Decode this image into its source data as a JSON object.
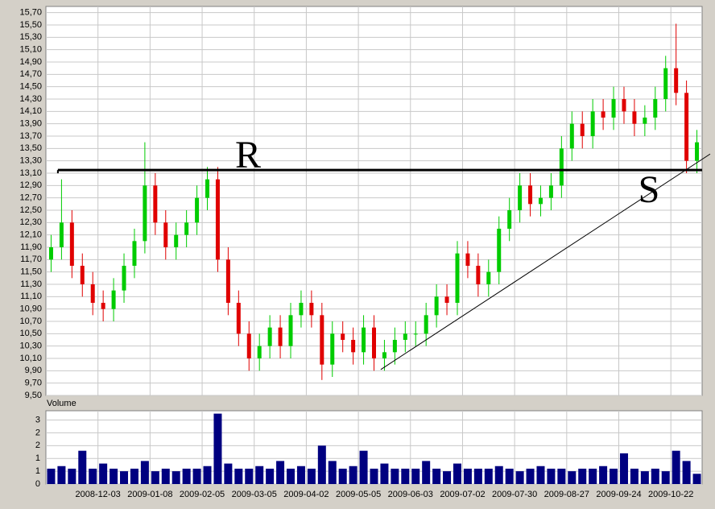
{
  "chart_data": {
    "type": "candlestick",
    "up_color": "#00cc00",
    "down_color": "#e00000",
    "grid": true,
    "open": [
      11.7,
      11.9,
      12.3,
      11.6,
      11.3,
      11.0,
      10.9,
      11.2,
      11.6,
      12.0,
      12.9,
      12.3,
      11.9,
      12.1,
      12.3,
      12.7,
      13.0,
      11.7,
      11.0,
      10.5,
      10.1,
      10.3,
      10.6,
      10.3,
      10.8,
      11.0,
      10.8,
      10.0,
      10.5,
      10.4,
      10.2,
      10.6,
      10.1,
      10.2,
      10.4,
      10.5,
      10.5,
      10.8,
      11.1,
      11.0,
      11.8,
      11.6,
      11.3,
      11.5,
      12.2,
      12.5,
      12.9,
      12.6,
      12.7,
      12.9,
      13.5,
      13.9,
      13.7,
      14.1,
      14.0,
      14.3,
      14.1,
      13.9,
      14.0,
      14.3,
      14.8,
      14.4,
      13.3
    ],
    "high": [
      12.1,
      13.0,
      12.5,
      11.8,
      11.5,
      11.2,
      11.4,
      11.8,
      12.2,
      13.6,
      13.1,
      12.5,
      12.3,
      12.5,
      12.9,
      13.2,
      13.2,
      11.9,
      11.2,
      10.7,
      10.5,
      10.8,
      10.8,
      11.0,
      11.2,
      11.2,
      11.0,
      10.7,
      10.7,
      10.6,
      10.8,
      10.8,
      10.4,
      10.6,
      10.7,
      10.7,
      11.0,
      11.3,
      11.3,
      12.0,
      12.0,
      11.8,
      11.7,
      12.4,
      12.7,
      13.1,
      13.1,
      12.9,
      13.1,
      13.7,
      14.1,
      14.1,
      14.3,
      14.3,
      14.5,
      14.5,
      14.3,
      14.2,
      14.5,
      15.0,
      15.52,
      14.6,
      13.8
    ],
    "low": [
      11.5,
      11.7,
      11.4,
      11.1,
      10.8,
      10.7,
      10.7,
      11.0,
      11.4,
      11.8,
      12.1,
      11.7,
      11.7,
      11.9,
      12.1,
      12.5,
      11.5,
      10.8,
      10.3,
      9.9,
      9.9,
      10.1,
      10.1,
      10.1,
      10.6,
      10.6,
      9.75,
      9.8,
      10.2,
      10.0,
      10.0,
      9.9,
      9.9,
      10.0,
      10.2,
      10.3,
      10.3,
      10.6,
      10.8,
      10.8,
      11.4,
      11.1,
      11.1,
      11.3,
      12.0,
      12.3,
      12.4,
      12.4,
      12.5,
      12.7,
      13.3,
      13.5,
      13.5,
      13.8,
      13.8,
      13.9,
      13.7,
      13.7,
      13.8,
      14.1,
      14.2,
      13.1,
      13.1
    ],
    "close": [
      11.9,
      12.3,
      11.6,
      11.3,
      11.0,
      10.9,
      11.2,
      11.6,
      12.0,
      12.9,
      12.3,
      11.9,
      12.1,
      12.3,
      12.7,
      13.0,
      11.7,
      11.0,
      10.5,
      10.1,
      10.3,
      10.6,
      10.3,
      10.8,
      11.0,
      10.8,
      10.0,
      10.5,
      10.4,
      10.2,
      10.6,
      10.1,
      10.2,
      10.4,
      10.5,
      10.5,
      10.8,
      11.1,
      11.0,
      11.8,
      11.6,
      11.3,
      11.5,
      12.2,
      12.5,
      12.9,
      12.6,
      12.7,
      12.9,
      13.5,
      13.9,
      13.7,
      14.1,
      14.0,
      14.3,
      14.1,
      13.9,
      14.0,
      14.3,
      14.8,
      14.4,
      13.3,
      13.6
    ],
    "xlim": [
      0,
      63
    ],
    "xticks": [
      {
        "value": 5,
        "label": "2008-12-03"
      },
      {
        "value": 10,
        "label": "2009-01-08"
      },
      {
        "value": 15,
        "label": "2009-02-05"
      },
      {
        "value": 20,
        "label": "2009-03-05"
      },
      {
        "value": 25,
        "label": "2009-04-02"
      },
      {
        "value": 30,
        "label": "2009-05-05"
      },
      {
        "value": 35,
        "label": "2009-06-03"
      },
      {
        "value": 40,
        "label": "2009-07-02"
      },
      {
        "value": 45,
        "label": "2009-07-30"
      },
      {
        "value": 50,
        "label": "2009-08-27"
      },
      {
        "value": 55,
        "label": "2009-09-24"
      },
      {
        "value": 60,
        "label": "2009-10-22"
      }
    ],
    "ylim": [
      9.5,
      15.8
    ],
    "yticks": [
      {
        "value": 9.5,
        "label": "9,50"
      },
      {
        "value": 9.7,
        "label": "9,70"
      },
      {
        "value": 9.9,
        "label": "9,90"
      },
      {
        "value": 10.1,
        "label": "10,10"
      },
      {
        "value": 10.3,
        "label": "10,30"
      },
      {
        "value": 10.5,
        "label": "10,50"
      },
      {
        "value": 10.7,
        "label": "10,70"
      },
      {
        "value": 10.9,
        "label": "10,90"
      },
      {
        "value": 11.1,
        "label": "11,10"
      },
      {
        "value": 11.3,
        "label": "11,30"
      },
      {
        "value": 11.5,
        "label": "11,50"
      },
      {
        "value": 11.7,
        "label": "11,70"
      },
      {
        "value": 11.9,
        "label": "11,90"
      },
      {
        "value": 12.1,
        "label": "12,10"
      },
      {
        "value": 12.3,
        "label": "12,30"
      },
      {
        "value": 12.5,
        "label": "12,50"
      },
      {
        "value": 12.7,
        "label": "12,70"
      },
      {
        "value": 12.9,
        "label": "12,90"
      },
      {
        "value": 13.1,
        "label": "13,10"
      },
      {
        "value": 13.3,
        "label": "13,30"
      },
      {
        "value": 13.5,
        "label": "13,50"
      },
      {
        "value": 13.7,
        "label": "13,70"
      },
      {
        "value": 13.9,
        "label": "13,90"
      },
      {
        "value": 14.1,
        "label": "14,10"
      },
      {
        "value": 14.3,
        "label": "14,30"
      },
      {
        "value": 14.5,
        "label": "14,50"
      },
      {
        "value": 14.7,
        "label": "14,70"
      },
      {
        "value": 14.9,
        "label": "14,90"
      },
      {
        "value": 15.1,
        "label": "15,10"
      },
      {
        "value": 15.3,
        "label": "15,30"
      },
      {
        "value": 15.5,
        "label": "15,50"
      },
      {
        "value": 15.7,
        "label": "15,70"
      }
    ],
    "resistance": {
      "label": "R",
      "value": 13.15,
      "from": 1.15
    },
    "support": {
      "label": "S",
      "x": [
        32.15,
        63.77
      ],
      "y": [
        9.92,
        13.41
      ]
    },
    "volume": {
      "title": "Volume",
      "color": "#000080",
      "values": [
        0.6,
        0.7,
        0.6,
        1.3,
        0.6,
        0.8,
        0.6,
        0.5,
        0.6,
        0.9,
        0.5,
        0.6,
        0.5,
        0.6,
        0.6,
        0.7,
        2.75,
        0.8,
        0.6,
        0.6,
        0.7,
        0.6,
        0.9,
        0.6,
        0.7,
        0.6,
        1.5,
        0.9,
        0.6,
        0.7,
        1.3,
        0.6,
        0.8,
        0.6,
        0.6,
        0.6,
        0.9,
        0.6,
        0.5,
        0.8,
        0.6,
        0.6,
        0.6,
        0.7,
        0.6,
        0.5,
        0.6,
        0.7,
        0.6,
        0.6,
        0.5,
        0.6,
        0.6,
        0.7,
        0.6,
        1.2,
        0.6,
        0.5,
        0.6,
        0.5,
        1.3,
        0.9,
        0.4
      ],
      "ylim": [
        0,
        2.8
      ],
      "yticks": [
        0,
        {
          "value": 0.5,
          "label": "1"
        },
        1,
        {
          "value": 1.5,
          "label": "2"
        },
        2,
        {
          "value": 2.5,
          "label": "3"
        }
      ]
    }
  }
}
